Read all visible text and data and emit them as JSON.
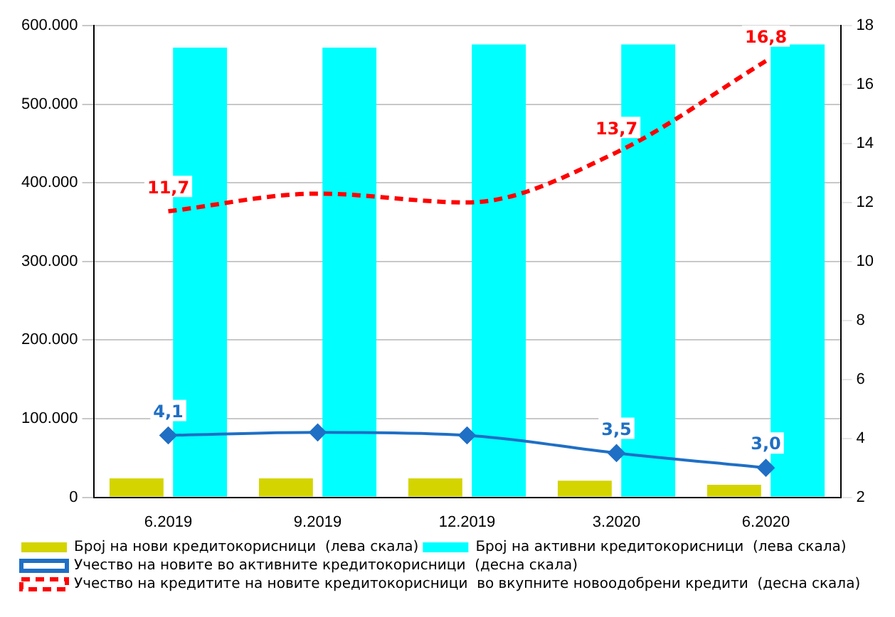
{
  "chart_data": {
    "type": "bar",
    "categories": [
      "6.2019",
      "9.2019",
      "12.2019",
      "3.2020",
      "6.2020"
    ],
    "series": [
      {
        "name": "Број на нови кредитокорисници  (лева скала)",
        "color": "#d4d400",
        "values": [
          24000,
          24000,
          24000,
          21000,
          16000
        ]
      },
      {
        "name": "Број на активни кредитокорисници  (лева скала)",
        "color": "#00ffff",
        "values": [
          572000,
          572000,
          576000,
          576000,
          576000
        ]
      },
      {
        "name": "Учество на новите во активните кредитокорисници  (десна скала)",
        "type": "line",
        "axis": "y2",
        "color": "#1f6fc5",
        "marker": "diamond",
        "line_style": "solid",
        "values": [
          4.1,
          4.2,
          4.1,
          3.5,
          3.0
        ],
        "value_labels": [
          "4,1",
          null,
          null,
          "3,5",
          "3,0"
        ]
      },
      {
        "name": "Учество на кредитите на новите кредитокорисници  во вкупните новоодобрени кредити  (десна скала)",
        "type": "line",
        "axis": "y2",
        "color": "#ff0000",
        "marker": "none",
        "line_style": "dashed",
        "values": [
          11.7,
          12.3,
          12.0,
          13.7,
          16.8
        ],
        "value_labels": [
          "11,7",
          null,
          null,
          "13,7",
          "16,8"
        ]
      }
    ],
    "ylim": [
      0,
      600000
    ],
    "yticks": [
      {
        "value": 0,
        "label": "0"
      },
      {
        "value": 100000,
        "label": "100.000"
      },
      {
        "value": 200000,
        "label": "200.000"
      },
      {
        "value": 300000,
        "label": "300.000"
      },
      {
        "value": 400000,
        "label": "400.000"
      },
      {
        "value": 500000,
        "label": "500.000"
      },
      {
        "value": 600000,
        "label": "600.000"
      }
    ],
    "y2lim": [
      2,
      18
    ],
    "y2ticks": [
      2,
      4,
      6,
      8,
      10,
      12,
      14,
      16,
      18
    ],
    "grid": "y",
    "legend": "bottom"
  }
}
